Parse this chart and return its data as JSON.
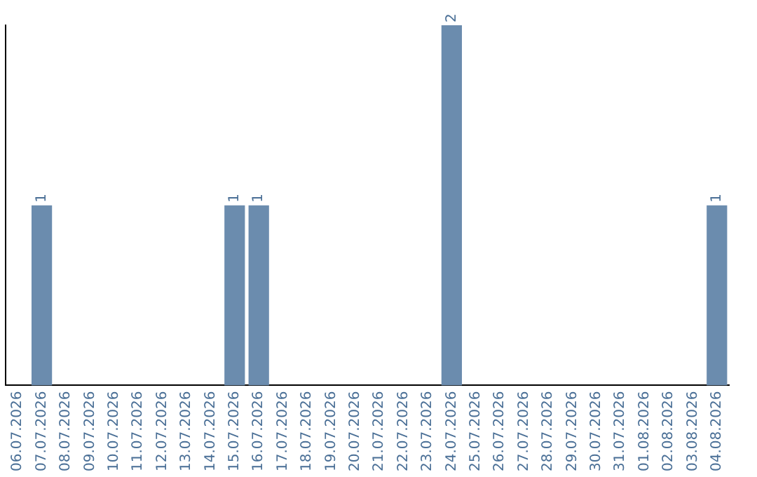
{
  "chart_data": {
    "type": "bar",
    "categories": [
      "06.07.2026",
      "07.07.2026",
      "08.07.2026",
      "09.07.2026",
      "10.07.2026",
      "11.07.2026",
      "12.07.2026",
      "13.07.2026",
      "14.07.2026",
      "15.07.2026",
      "16.07.2026",
      "17.07.2026",
      "18.07.2026",
      "19.07.2026",
      "20.07.2026",
      "21.07.2026",
      "22.07.2026",
      "23.07.2026",
      "24.07.2026",
      "25.07.2026",
      "26.07.2026",
      "27.07.2026",
      "28.07.2026",
      "29.07.2026",
      "30.07.2026",
      "31.07.2026",
      "01.08.2026",
      "02.08.2026",
      "03.08.2026",
      "04.08.2026"
    ],
    "values": [
      0,
      1,
      0,
      0,
      0,
      0,
      0,
      0,
      0,
      1,
      1,
      0,
      0,
      0,
      0,
      0,
      0,
      0,
      2,
      0,
      0,
      0,
      0,
      0,
      0,
      0,
      0,
      0,
      0,
      1
    ],
    "value_labels": [
      null,
      "1",
      null,
      null,
      null,
      null,
      null,
      null,
      null,
      "1",
      "1",
      null,
      null,
      null,
      null,
      null,
      null,
      null,
      "2",
      null,
      null,
      null,
      null,
      null,
      null,
      null,
      null,
      null,
      null,
      "1"
    ],
    "color": "#6b8cae",
    "tick_labels": "x",
    "grid": false,
    "legend": false
  }
}
